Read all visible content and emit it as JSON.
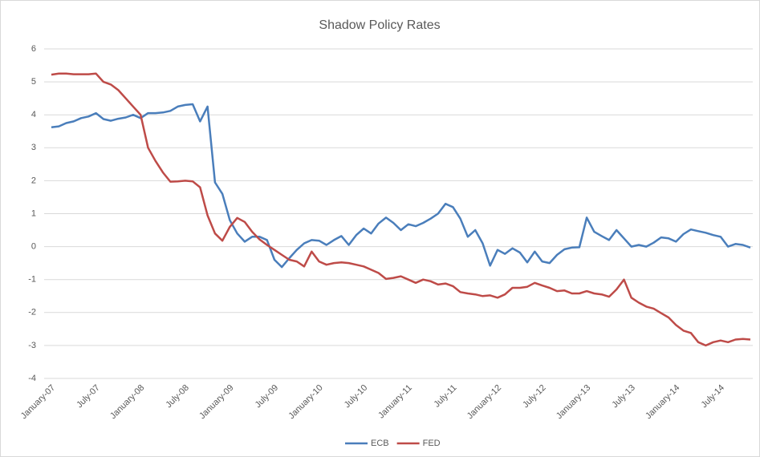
{
  "chart_data": {
    "type": "line",
    "title": "Shadow Policy Rates",
    "categories": [
      "January-07",
      null,
      null,
      null,
      null,
      null,
      "July-07",
      null,
      null,
      null,
      null,
      null,
      "January-08",
      null,
      null,
      null,
      null,
      null,
      "July-08",
      null,
      null,
      null,
      null,
      null,
      "January-09",
      null,
      null,
      null,
      null,
      null,
      "July-09",
      null,
      null,
      null,
      null,
      null,
      "January-10",
      null,
      null,
      null,
      null,
      null,
      "July-10",
      null,
      null,
      null,
      null,
      null,
      "January-11",
      null,
      null,
      null,
      null,
      null,
      "July-11",
      null,
      null,
      null,
      null,
      null,
      "January-12",
      null,
      null,
      null,
      null,
      null,
      "July-12",
      null,
      null,
      null,
      null,
      null,
      "January-13",
      null,
      null,
      null,
      null,
      null,
      "July-13",
      null,
      null,
      null,
      null,
      null,
      "January-14",
      null,
      null,
      null,
      null,
      null,
      "July-14",
      null,
      null,
      null,
      null
    ],
    "series": [
      {
        "name": "ECB",
        "color": "#4a7ebb",
        "values": [
          3.62,
          3.65,
          3.75,
          3.8,
          3.9,
          3.95,
          4.05,
          3.87,
          3.82,
          3.88,
          3.92,
          4.0,
          3.9,
          4.05,
          4.05,
          4.07,
          4.12,
          4.25,
          4.3,
          4.32,
          3.8,
          4.25,
          1.95,
          1.6,
          0.8,
          0.4,
          0.15,
          0.3,
          0.3,
          0.2,
          -0.4,
          -0.62,
          -0.35,
          -0.1,
          0.1,
          0.2,
          0.18,
          0.05,
          0.2,
          0.32,
          0.05,
          0.35,
          0.55,
          0.4,
          0.7,
          0.88,
          0.72,
          0.5,
          0.68,
          0.62,
          0.72,
          0.85,
          1.0,
          1.3,
          1.2,
          0.85,
          0.3,
          0.5,
          0.1,
          -0.58,
          -0.1,
          -0.22,
          -0.05,
          -0.18,
          -0.48,
          -0.15,
          -0.45,
          -0.5,
          -0.25,
          -0.08,
          -0.03,
          -0.02,
          0.88,
          0.45,
          0.32,
          0.2,
          0.5,
          0.25,
          0.0,
          0.05,
          0.0,
          0.12,
          0.28,
          0.25,
          0.15,
          0.38,
          0.52,
          0.47,
          0.42,
          0.35,
          0.3,
          0.0,
          0.08,
          0.05,
          -0.03
        ]
      },
      {
        "name": "FED",
        "color": "#be4b48",
        "values": [
          5.22,
          5.25,
          5.25,
          5.23,
          5.23,
          5.23,
          5.25,
          5.0,
          4.92,
          4.75,
          4.5,
          4.25,
          4.0,
          3.0,
          2.6,
          2.25,
          1.97,
          1.98,
          2.0,
          1.98,
          1.8,
          0.95,
          0.4,
          0.18,
          0.6,
          0.87,
          0.75,
          0.45,
          0.22,
          0.05,
          -0.1,
          -0.25,
          -0.4,
          -0.45,
          -0.6,
          -0.15,
          -0.45,
          -0.55,
          -0.5,
          -0.48,
          -0.5,
          -0.55,
          -0.6,
          -0.7,
          -0.8,
          -0.98,
          -0.95,
          -0.9,
          -1.0,
          -1.1,
          -1.0,
          -1.05,
          -1.15,
          -1.12,
          -1.2,
          -1.38,
          -1.42,
          -1.45,
          -1.5,
          -1.48,
          -1.55,
          -1.45,
          -1.25,
          -1.25,
          -1.22,
          -1.1,
          -1.18,
          -1.25,
          -1.35,
          -1.33,
          -1.42,
          -1.42,
          -1.35,
          -1.42,
          -1.45,
          -1.52,
          -1.3,
          -1.0,
          -1.55,
          -1.7,
          -1.82,
          -1.88,
          -2.02,
          -2.15,
          -2.38,
          -2.55,
          -2.62,
          -2.9,
          -3.0,
          -2.9,
          -2.85,
          -2.9,
          -2.82,
          -2.8,
          -2.82
        ]
      }
    ],
    "ylim": [
      -4,
      6
    ],
    "yticks": [
      -4,
      -3,
      -2,
      -1,
      0,
      1,
      2,
      3,
      4,
      5,
      6
    ],
    "grid": true,
    "legend": "bottom"
  }
}
